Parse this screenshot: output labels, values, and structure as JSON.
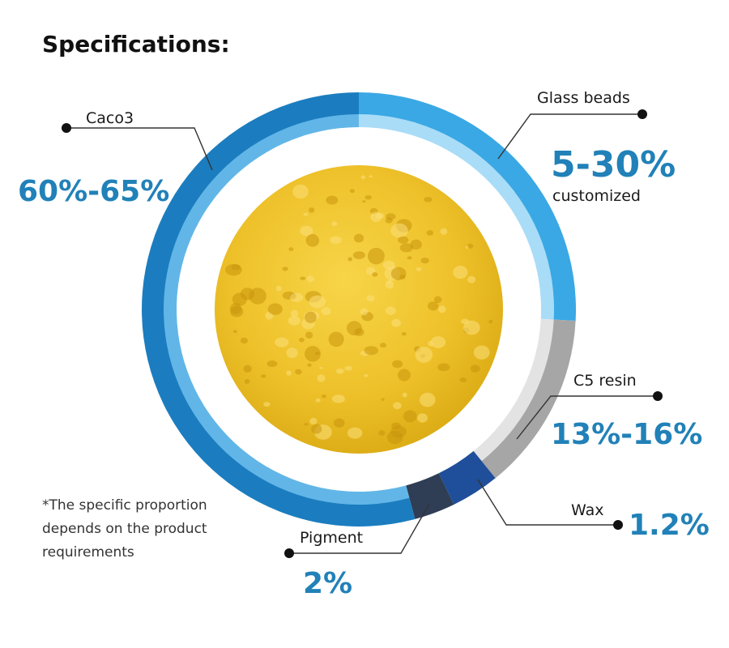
{
  "header": {
    "title": "Specifications:"
  },
  "components": [
    {
      "name": "Caco3",
      "proportion": "60%-65%"
    },
    {
      "name": "Glass beads",
      "proportion": "5-30%",
      "note": "customized"
    },
    {
      "name": "C5 resin",
      "proportion": "13%-16%"
    },
    {
      "name": "Wax",
      "proportion": "1.2%"
    },
    {
      "name": "Pigment",
      "proportion": "2%"
    }
  ],
  "footnote": [
    "*The specific proportion",
    "depends on the product",
    "requirements"
  ]
}
